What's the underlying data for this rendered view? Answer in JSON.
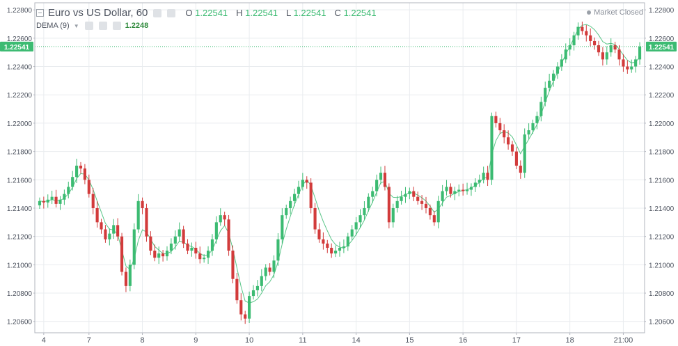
{
  "legend": {
    "symbol": "Euro vs US Dollar, 60",
    "open_label": "O",
    "open": "1.22541",
    "high_label": "H",
    "high": "1.22541",
    "low_label": "L",
    "low": "1.22541",
    "close_label": "C",
    "close": "1.22541",
    "indicator": "DEMA (9)",
    "indicator_value": "1.2248",
    "market_status": "Market Closed"
  },
  "chart_data": {
    "type": "candlestick",
    "ylim": [
      1.2052,
      1.2285
    ],
    "y_ticks": [
      "1.22800",
      "1.22600",
      "1.22400",
      "1.22200",
      "1.22000",
      "1.21800",
      "1.21600",
      "1.21400",
      "1.21200",
      "1.21000",
      "1.20800",
      "1.20600"
    ],
    "y_tick_values": [
      1.228,
      1.226,
      1.224,
      1.222,
      1.22,
      1.218,
      1.216,
      1.214,
      1.212,
      1.21,
      1.208,
      1.206
    ],
    "x_labels": [
      "4",
      "7",
      "8",
      "9",
      "10",
      "11",
      "14",
      "15",
      "16",
      "17",
      "18",
      "21:00"
    ],
    "x_label_index": [
      1,
      12,
      25,
      38,
      51,
      64,
      77,
      90,
      103,
      116,
      129,
      142
    ],
    "last_price": "1.22541",
    "last_price_value": 1.22541,
    "indicator_name": "DEMA (9)",
    "series": [
      {
        "name": "EUR/USD",
        "close": [
          1.2145,
          1.2144,
          1.2146,
          1.2148,
          1.2143,
          1.2146,
          1.215,
          1.2155,
          1.2162,
          1.217,
          1.2168,
          1.216,
          1.215,
          1.214,
          1.213,
          1.2125,
          1.2118,
          1.2122,
          1.2128,
          1.212,
          1.2095,
          1.2085,
          1.21,
          1.2125,
          1.2145,
          1.214,
          1.212,
          1.211,
          1.2105,
          1.2108,
          1.2106,
          1.211,
          1.2115,
          1.212,
          1.2125,
          1.2115,
          1.211,
          1.2112,
          1.2108,
          1.2104,
          1.2105,
          1.211,
          1.2118,
          1.213,
          1.2135,
          1.2132,
          1.211,
          1.209,
          1.2075,
          1.2065,
          1.2062,
          1.2078,
          1.2082,
          1.2085,
          1.2092,
          1.2098,
          1.2095,
          1.2103,
          1.2118,
          1.2135,
          1.214,
          1.2145,
          1.215,
          1.2155,
          1.216,
          1.2158,
          1.214,
          1.2125,
          1.2118,
          1.2115,
          1.2112,
          1.2108,
          1.211,
          1.2112,
          1.2113,
          1.212,
          1.2125,
          1.213,
          1.2135,
          1.214,
          1.2148,
          1.2152,
          1.216,
          1.2165,
          1.2155,
          1.213,
          1.214,
          1.2145,
          1.2148,
          1.215,
          1.2152,
          1.2148,
          1.2145,
          1.2143,
          1.214,
          1.2135,
          1.213,
          1.2145,
          1.2152,
          1.2155,
          1.215,
          1.2152,
          1.2153,
          1.2152,
          1.2153,
          1.2155,
          1.2158,
          1.216,
          1.2165,
          1.216,
          1.2205,
          1.22,
          1.2195,
          1.219,
          1.2185,
          1.218,
          1.217,
          1.2165,
          1.2192,
          1.2195,
          1.22,
          1.2205,
          1.2215,
          1.2225,
          1.223,
          1.2235,
          1.224,
          1.2245,
          1.2252,
          1.2255,
          1.2262,
          1.2268,
          1.2265,
          1.2262,
          1.2258,
          1.2255,
          1.225,
          1.2245,
          1.225,
          1.2255,
          1.2252,
          1.2245,
          1.224,
          1.2238,
          1.224,
          1.2245,
          1.22541
        ]
      }
    ]
  }
}
